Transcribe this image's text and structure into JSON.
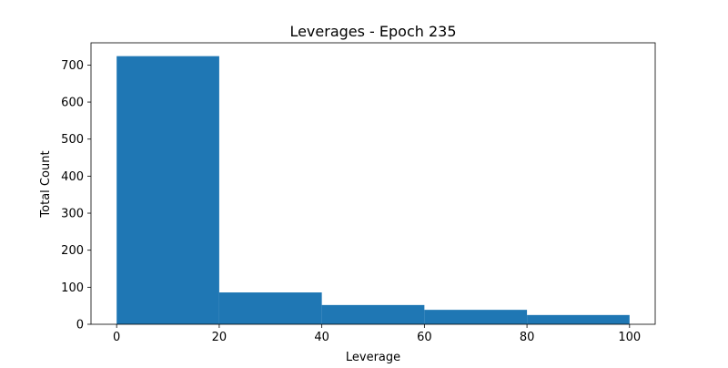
{
  "chart_data": {
    "type": "bar",
    "title": "Leverages - Epoch 235",
    "xlabel": "Leverage",
    "ylabel": "Total Count",
    "bins": [
      {
        "start": 0,
        "end": 20,
        "count": 724
      },
      {
        "start": 20,
        "end": 40,
        "count": 86
      },
      {
        "start": 40,
        "end": 60,
        "count": 52
      },
      {
        "start": 60,
        "end": 80,
        "count": 39
      },
      {
        "start": 80,
        "end": 100,
        "count": 25
      }
    ],
    "xlim": [
      -5,
      105
    ],
    "ylim": [
      0,
      760
    ],
    "x_ticks": [
      0,
      20,
      40,
      60,
      80,
      100
    ],
    "y_ticks": [
      0,
      100,
      200,
      300,
      400,
      500,
      600,
      700
    ],
    "grid": false,
    "bar_color": "#1f77b4"
  }
}
